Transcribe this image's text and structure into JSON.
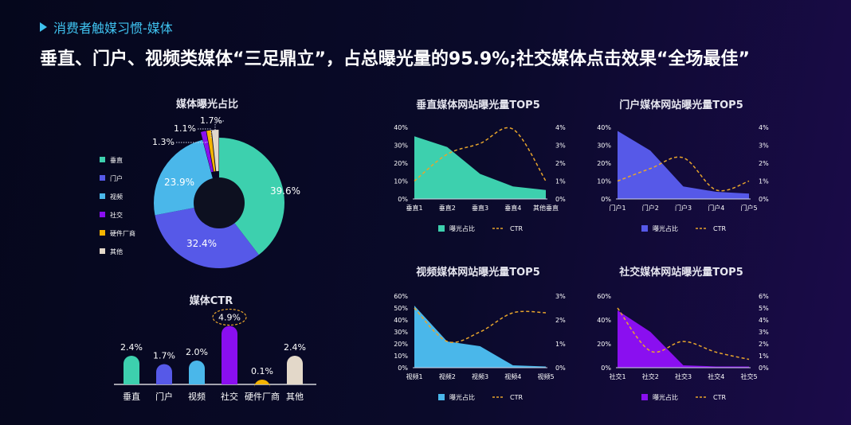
{
  "header": {
    "breadcrumb": "消费者触媒习惯-媒体",
    "headline": "垂直、门户、视频类媒体“三足鼎立”，占总曝光量的95.9%;社交媒体点击效果“全场最佳”"
  },
  "colors": {
    "vertical": "#3dd0ae",
    "portal": "#5659e8",
    "video": "#4ab7ea",
    "social": "#8a0ff0",
    "hardware": "#f4b400",
    "other": "#e3d8c9",
    "ctr_line": "#e8a52c"
  },
  "chart_data": [
    {
      "type": "pie",
      "title": "媒体曝光占比",
      "legend": [
        "垂直",
        "门户",
        "视频",
        "社交",
        "硬件厂商",
        "其他"
      ],
      "values": [
        39.6,
        32.4,
        23.9,
        1.3,
        1.1,
        1.7
      ],
      "labels": [
        "39.6%",
        "32.4%",
        "23.9%",
        "1.3%",
        "1.1%",
        "1.7%"
      ],
      "legend_position": "left"
    },
    {
      "type": "bar",
      "title": "媒体CTR",
      "categories": [
        "垂直",
        "门户",
        "视频",
        "社交",
        "硬件厂商",
        "其他"
      ],
      "values": [
        2.4,
        1.7,
        2.0,
        4.9,
        0.1,
        2.4
      ],
      "labels": [
        "2.4%",
        "1.7%",
        "2.0%",
        "4.9%",
        "0.1%",
        "2.4%"
      ],
      "highlight": "4.9%"
    },
    {
      "type": "area",
      "title": "垂直媒体网站曝光量TOP5",
      "categories": [
        "垂直1",
        "垂直2",
        "垂直3",
        "垂直4",
        "其他垂直"
      ],
      "series": [
        {
          "name": "曝光占比",
          "values": [
            35,
            29,
            14,
            7,
            5
          ],
          "axis": "left"
        },
        {
          "name": "CTR",
          "values": [
            1.0,
            2.5,
            3.1,
            3.9,
            1.0
          ],
          "axis": "right",
          "style": "dashed"
        }
      ],
      "left_ticks": [
        "40%",
        "30%",
        "20%",
        "10%",
        "0%"
      ],
      "right_ticks": [
        "4%",
        "3%",
        "2%",
        "1%",
        "0%"
      ],
      "left_max": 40,
      "right_max": 4
    },
    {
      "type": "area",
      "title": "门户媒体网站曝光量TOP5",
      "categories": [
        "门户1",
        "门户2",
        "门户3",
        "门户4",
        "门户5"
      ],
      "series": [
        {
          "name": "曝光占比",
          "values": [
            38,
            27,
            7,
            4,
            3
          ],
          "axis": "left"
        },
        {
          "name": "CTR",
          "values": [
            1.0,
            1.7,
            2.3,
            0.5,
            1.0
          ],
          "axis": "right",
          "style": "dashed"
        }
      ],
      "left_ticks": [
        "40%",
        "30%",
        "20%",
        "10%",
        "0%"
      ],
      "right_ticks": [
        "4%",
        "3%",
        "2%",
        "1%",
        "0%"
      ],
      "left_max": 40,
      "right_max": 4
    },
    {
      "type": "area",
      "title": "视频媒体网站曝光量TOP5",
      "categories": [
        "视频1",
        "视频2",
        "视频3",
        "视频4",
        "视频5"
      ],
      "series": [
        {
          "name": "曝光占比",
          "values": [
            52,
            22,
            18,
            2,
            1
          ],
          "axis": "left"
        },
        {
          "name": "CTR",
          "values": [
            2.5,
            1.1,
            1.5,
            2.3,
            2.3
          ],
          "axis": "right",
          "style": "dashed"
        }
      ],
      "left_ticks": [
        "60%",
        "50%",
        "40%",
        "30%",
        "20%",
        "10%",
        "0%"
      ],
      "right_ticks": [
        "3%",
        "2%",
        "1%",
        "0%"
      ],
      "left_max": 60,
      "right_max": 3
    },
    {
      "type": "area",
      "title": "社交媒体网站曝光量TOP5",
      "categories": [
        "社交1",
        "社交2",
        "社交3",
        "社交4",
        "社交5"
      ],
      "series": [
        {
          "name": "曝光占比",
          "values": [
            48,
            30,
            2,
            1,
            1
          ],
          "axis": "left"
        },
        {
          "name": "CTR",
          "values": [
            5.0,
            1.4,
            2.2,
            1.3,
            0.7
          ],
          "axis": "right",
          "style": "dashed"
        }
      ],
      "left_ticks": [
        "60%",
        "40%",
        "20%",
        "0%"
      ],
      "right_ticks": [
        "6%",
        "5%",
        "4%",
        "3%",
        "2%",
        "1%",
        "0%"
      ],
      "left_max": 60,
      "right_max": 6
    }
  ]
}
